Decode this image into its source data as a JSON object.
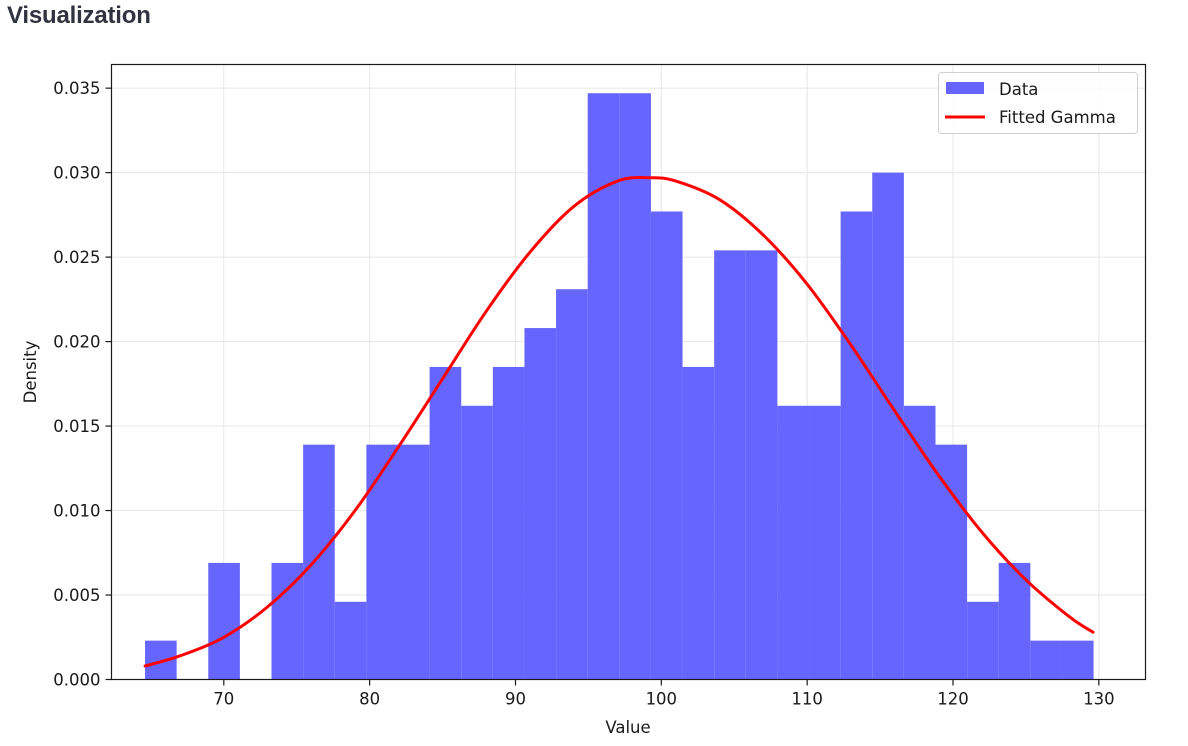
{
  "page": {
    "section_title": "Visualization"
  },
  "chart_data": {
    "type": "bar",
    "subtype": "histogram_with_fitted_curve",
    "title": "",
    "xlabel": "Value",
    "ylabel": "Density",
    "xlim": [
      62.3,
      133.2
    ],
    "ylim": [
      0,
      0.0364
    ],
    "x_ticks": [
      70,
      80,
      90,
      100,
      110,
      120,
      130
    ],
    "x_tick_labels": [
      "70",
      "80",
      "90",
      "100",
      "110",
      "120",
      "130"
    ],
    "y_ticks": [
      0.0,
      0.005,
      0.01,
      0.015,
      0.02,
      0.025,
      0.03,
      0.035
    ],
    "y_tick_labels": [
      "0.000",
      "0.005",
      "0.010",
      "0.015",
      "0.020",
      "0.025",
      "0.030",
      "0.035"
    ],
    "grid": true,
    "legend_position": "upper right",
    "legend": [
      "Data",
      "Fitted Gamma"
    ],
    "series": [
      {
        "name": "Data",
        "type": "histogram",
        "color": "#6666ff",
        "bin_start": 64.6,
        "bin_width": 2.168,
        "bin_count": 30,
        "values": [
          0.0023,
          0.0,
          0.0069,
          0.0,
          0.0069,
          0.0139,
          0.0046,
          0.0139,
          0.0139,
          0.0185,
          0.0162,
          0.0185,
          0.0208,
          0.0231,
          0.0347,
          0.0347,
          0.0277,
          0.0185,
          0.0254,
          0.0254,
          0.0162,
          0.0162,
          0.0277,
          0.03,
          0.0162,
          0.0139,
          0.0046,
          0.0069,
          0.0023,
          0.0023
        ]
      },
      {
        "name": "Fitted Gamma",
        "type": "line",
        "color": "#ff0000",
        "x": [
          64.6,
          67,
          70,
          73,
          76,
          79,
          82,
          85,
          88,
          91,
          94,
          97,
          99.2,
          101,
          104,
          107,
          110,
          113,
          116,
          119,
          122,
          125,
          128,
          129.6
        ],
        "values": [
          0.0008,
          0.0014,
          0.0025,
          0.0043,
          0.0068,
          0.01,
          0.0138,
          0.0178,
          0.0218,
          0.0253,
          0.028,
          0.0295,
          0.0297,
          0.0295,
          0.0284,
          0.0263,
          0.0234,
          0.0198,
          0.0159,
          0.0121,
          0.0087,
          0.0059,
          0.0037,
          0.0028
        ]
      }
    ]
  }
}
